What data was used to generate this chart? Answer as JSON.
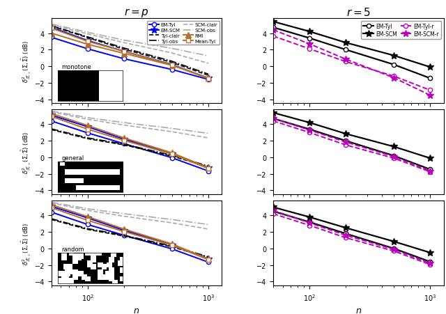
{
  "n_values": [
    50,
    100,
    200,
    500,
    1000
  ],
  "left_col_title": "$r = p$",
  "right_col_title": "$r = 5$",
  "row_labels": [
    "monotone",
    "general",
    "random"
  ],
  "ylabel": "$\\delta^2_{\\mathcal{S}^p_{++}}(\\Sigma, \\hat{\\Sigma})$ (dB)",
  "xlabel": "$n$",
  "ylim": [
    -4.5,
    5.8
  ],
  "yticks": [
    -4,
    -2,
    0,
    2,
    4
  ],
  "left_data": {
    "monotone": {
      "EM-Tyl": [
        3.5,
        2.1,
        0.9,
        -0.4,
        -1.6
      ],
      "EM-SCM": [
        4.7,
        3.1,
        1.8,
        0.2,
        -1.45
      ],
      "Tyl-clair": [
        4.85,
        3.45,
        2.05,
        0.45,
        -1.1
      ],
      "Tyl-obs": [
        4.9,
        3.55,
        2.2,
        0.6,
        -0.95
      ],
      "SCM-clair": [
        5.0,
        3.9,
        2.85,
        1.6,
        0.35
      ],
      "SCM-obs": [
        5.1,
        4.1,
        3.15,
        2.15,
        1.25
      ],
      "RMI": [
        4.0,
        2.65,
        1.55,
        0.1,
        -1.4
      ],
      "Mean-Tyl": [
        4.6,
        3.0,
        1.8,
        0.15,
        -1.5
      ]
    },
    "general": {
      "EM-Tyl": [
        4.4,
        2.95,
        1.65,
        -0.05,
        -1.65
      ],
      "EM-SCM": [
        5.1,
        3.7,
        2.2,
        0.45,
        -1.25
      ],
      "Tyl-clair": [
        3.35,
        2.25,
        1.5,
        0.15,
        -1.15
      ],
      "Tyl-obs": [
        3.45,
        2.35,
        1.6,
        0.25,
        -1.05
      ],
      "SCM-clair": [
        5.5,
        4.6,
        3.9,
        3.1,
        2.35
      ],
      "SCM-obs": [
        5.6,
        4.8,
        4.2,
        3.5,
        2.9
      ],
      "RMI": [
        5.3,
        3.85,
        2.35,
        0.55,
        -1.25
      ],
      "Mean-Tyl": [
        4.95,
        3.4,
        2.05,
        0.4,
        -1.35
      ]
    },
    "random": {
      "EM-Tyl": [
        4.4,
        2.9,
        1.6,
        -0.05,
        -1.65
      ],
      "EM-SCM": [
        5.1,
        3.7,
        2.2,
        0.45,
        -1.25
      ],
      "Tyl-clair": [
        3.5,
        2.3,
        1.5,
        0.2,
        -1.1
      ],
      "Tyl-obs": [
        3.6,
        2.4,
        1.6,
        0.3,
        -1.0
      ],
      "SCM-clair": [
        5.5,
        4.6,
        3.9,
        3.1,
        2.35
      ],
      "SCM-obs": [
        5.6,
        4.8,
        4.2,
        3.5,
        2.9
      ],
      "RMI": [
        5.3,
        3.85,
        2.35,
        0.55,
        -1.25
      ],
      "Mean-Tyl": [
        4.95,
        3.4,
        2.05,
        0.4,
        -1.35
      ]
    }
  },
  "right_data": {
    "monotone": {
      "EM-Tyl": [
        4.7,
        3.4,
        2.0,
        0.2,
        -1.45
      ],
      "EM-SCM": [
        5.4,
        4.2,
        2.85,
        1.3,
        -0.1
      ],
      "EM-Tyl-r": [
        3.65,
        2.1,
        0.55,
        -1.2,
        -2.9
      ],
      "EM-SCM-r": [
        4.4,
        2.7,
        0.85,
        -1.4,
        -3.5
      ]
    },
    "general": {
      "EM-Tyl": [
        4.7,
        3.4,
        2.0,
        0.2,
        -1.45
      ],
      "EM-SCM": [
        5.4,
        4.2,
        2.85,
        1.3,
        -0.1
      ],
      "EM-Tyl-r": [
        4.4,
        3.0,
        1.5,
        -0.1,
        -1.75
      ],
      "EM-SCM-r": [
        4.7,
        3.3,
        1.85,
        0.1,
        -1.65
      ]
    },
    "random": {
      "EM-Tyl": [
        4.5,
        3.2,
        1.8,
        0.0,
        -1.6
      ],
      "EM-SCM": [
        5.0,
        3.8,
        2.5,
        0.85,
        -0.5
      ],
      "EM-Tyl-r": [
        4.2,
        2.8,
        1.3,
        -0.3,
        -1.95
      ],
      "EM-SCM-r": [
        4.6,
        3.1,
        1.6,
        -0.1,
        -1.8
      ]
    }
  },
  "left_styles": {
    "EM-Tyl": {
      "color": "#0000ee",
      "ls": "-",
      "marker": "o",
      "ms": 4.5,
      "lw": 1.4,
      "mfc": "white",
      "mec": "#0000ee",
      "label": "EM-Tyl"
    },
    "EM-SCM": {
      "color": "#0000ee",
      "ls": "-",
      "marker": "*",
      "ms": 7,
      "lw": 1.4,
      "mfc": "#0000ee",
      "mec": "#0000ee",
      "label": "EM-SCM"
    },
    "Tyl-clair": {
      "color": "black",
      "ls": "--",
      "marker": "",
      "ms": 0,
      "lw": 1.2,
      "mfc": "black",
      "mec": "black",
      "label": "Tyl-clair"
    },
    "Tyl-obs": {
      "color": "black",
      "ls": "-.",
      "marker": "",
      "ms": 0,
      "lw": 1.2,
      "mfc": "black",
      "mec": "black",
      "label": "Tyl-obs"
    },
    "SCM-clair": {
      "color": "#aaaaaa",
      "ls": "--",
      "marker": "",
      "ms": 0,
      "lw": 1.2,
      "mfc": "gray",
      "mec": "gray",
      "label": "SCM-clair"
    },
    "SCM-obs": {
      "color": "#aaaaaa",
      "ls": "-.",
      "marker": "",
      "ms": 0,
      "lw": 1.2,
      "mfc": "gray",
      "mec": "gray",
      "label": "SCM-obs"
    },
    "RMI": {
      "color": "#b87030",
      "ls": "-",
      "marker": "^",
      "ms": 5.5,
      "lw": 1.4,
      "mfc": "#b87030",
      "mec": "#b87030",
      "label": "RMI"
    },
    "Mean-Tyl": {
      "color": "#b87030",
      "ls": "-",
      "marker": "s",
      "ms": 4.5,
      "lw": 1.4,
      "mfc": "white",
      "mec": "#b87030",
      "label": "Mean-Tyl"
    }
  },
  "right_styles": {
    "EM-Tyl": {
      "color": "black",
      "ls": "-",
      "marker": "o",
      "ms": 4.5,
      "lw": 1.6,
      "mfc": "white",
      "mec": "black",
      "label": "EM-Tyl"
    },
    "EM-SCM": {
      "color": "black",
      "ls": "-",
      "marker": "*",
      "ms": 7,
      "lw": 1.6,
      "mfc": "black",
      "mec": "black",
      "label": "EM-SCM"
    },
    "EM-Tyl-r": {
      "color": "#bb00bb",
      "ls": "--",
      "marker": "o",
      "ms": 4.5,
      "lw": 1.4,
      "mfc": "white",
      "mec": "#bb00bb",
      "label": "EM-Tyl-r"
    },
    "EM-SCM-r": {
      "color": "#bb00bb",
      "ls": "--",
      "marker": "*",
      "ms": 7,
      "lw": 1.4,
      "mfc": "#bb00bb",
      "mec": "#bb00bb",
      "label": "EM-SCM-r"
    }
  },
  "left_legend_order": [
    "EM-Tyl",
    "EM-SCM",
    "Tyl-clair",
    "Tyl-obs",
    "SCM-clair",
    "SCM-obs",
    "RMI",
    "Mean-Tyl"
  ],
  "right_legend_order": [
    "EM-Tyl",
    "EM-SCM",
    "EM-Tyl-r",
    "EM-SCM-r"
  ]
}
